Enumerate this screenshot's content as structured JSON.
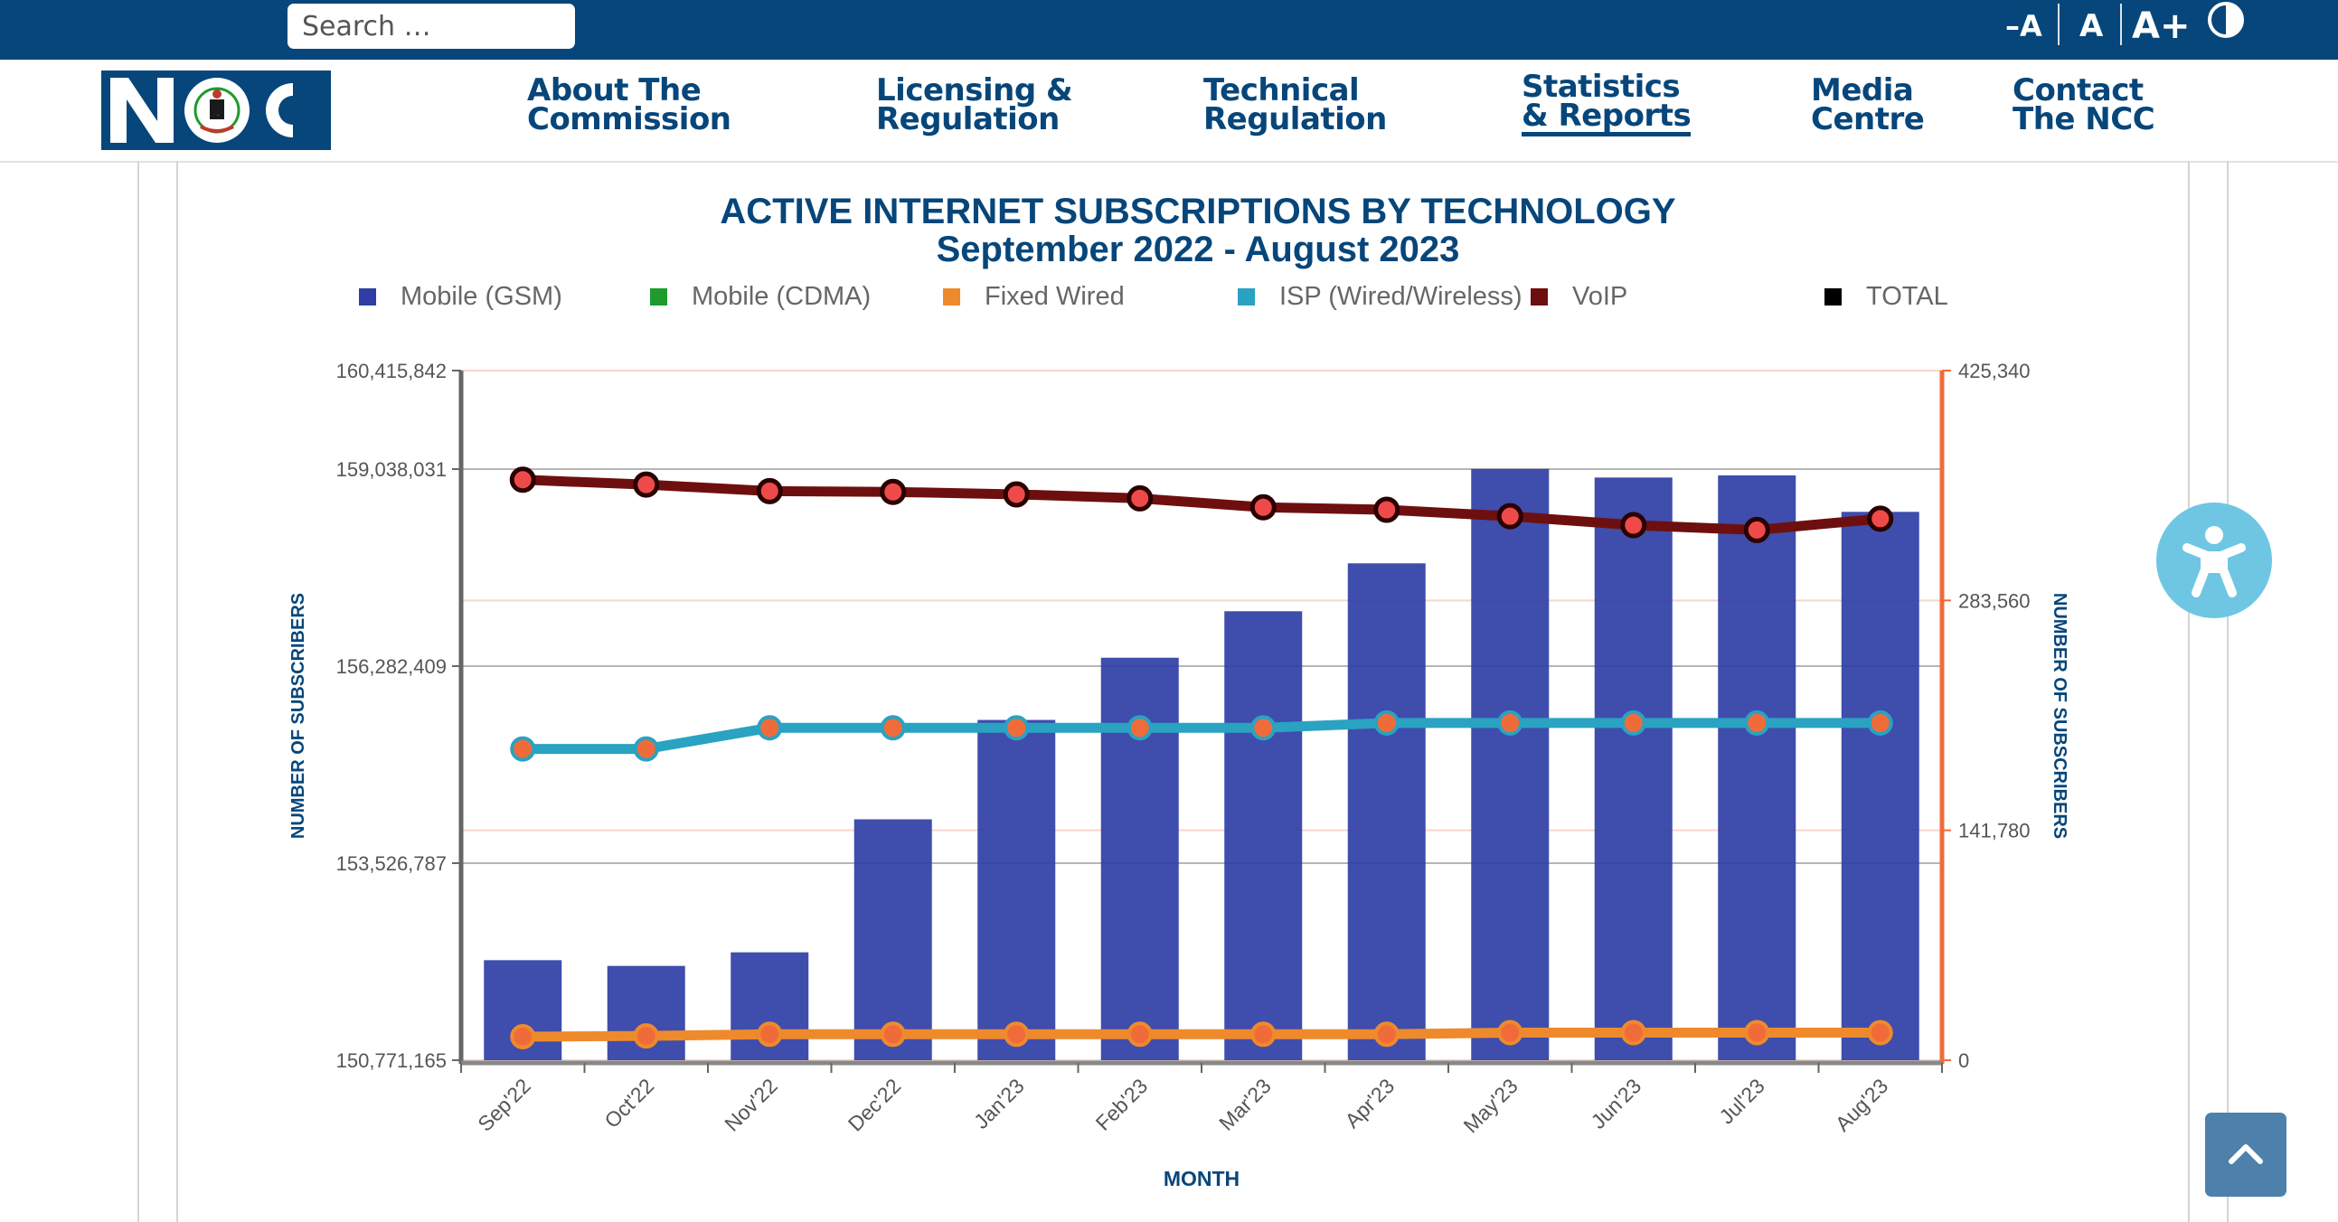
{
  "topbar": {
    "search_placeholder": "Search …",
    "font_decrease": "–A",
    "font_reset": "A",
    "font_increase": "A+"
  },
  "logo": {
    "text": "NCC"
  },
  "nav": {
    "about": [
      "About The",
      "Commission"
    ],
    "licensing": [
      "Licensing &",
      "Regulation"
    ],
    "technical": [
      "Technical",
      "Regulation"
    ],
    "statistics": [
      "Statistics",
      "& Reports"
    ],
    "media": [
      "Media",
      "Centre"
    ],
    "contact": [
      "Contact",
      "The NCC"
    ]
  },
  "colors": {
    "brand": "#06467a",
    "gsm": "#2f3ea5",
    "cdma": "#1f9a2c",
    "fixed": "#ef8a2c",
    "isp": "#2aa2c2",
    "voip": "#6e0f0f",
    "total": "#000000"
  },
  "chart_data": {
    "type": "bar",
    "title": "ACTIVE INTERNET SUBSCRIPTIONS BY TECHNOLOGY",
    "subtitle": "September 2022 - August 2023",
    "xlabel": "MONTH",
    "ylabel_left": "NUMBER OF SUBSCRIBERS",
    "ylabel_right": "NUMBER OF SUBSCRIBERS",
    "legend_position": "top",
    "legend": [
      "Mobile (GSM)",
      "Mobile (CDMA)",
      "Fixed Wired",
      "ISP (Wired/Wireless)",
      "VoIP",
      "TOTAL"
    ],
    "categories": [
      "Sep'22",
      "Oct'22",
      "Nov'22",
      "Dec'22",
      "Jan'23",
      "Feb'23",
      "Mar'23",
      "Apr'23",
      "May'23",
      "Jun'23",
      "Jul'23",
      "Aug'23"
    ],
    "y_left": {
      "range": [
        150771165,
        160415842
      ],
      "ticks": [
        "160,415,842",
        "159,038,031",
        "156,282,409",
        "153,526,787",
        "150,771,165"
      ],
      "tick_values": [
        160415842,
        159038031,
        156282409,
        153526787,
        150771165
      ]
    },
    "y_right": {
      "range": [
        0,
        425340
      ],
      "ticks": [
        "425,340",
        "283,560",
        "141,780",
        "0"
      ],
      "tick_values": [
        425340,
        283560,
        141780,
        0
      ]
    },
    "series": [
      {
        "name": "Mobile (GSM)",
        "type": "bar",
        "axis": "left",
        "values": [
          152170000,
          152090000,
          152280000,
          154140000,
          155530000,
          156400000,
          157050000,
          157720000,
          159040000,
          158920000,
          158950000,
          158440000
        ]
      },
      {
        "name": "Fixed Wired",
        "type": "line",
        "axis": "right",
        "values": [
          14500,
          15000,
          16000,
          16000,
          16000,
          16000,
          16000,
          16000,
          17000,
          17000,
          17000,
          17000
        ]
      },
      {
        "name": "ISP (Wired/Wireless)",
        "type": "line",
        "axis": "right",
        "values": [
          192000,
          192000,
          205000,
          205000,
          205000,
          205000,
          205000,
          208000,
          208000,
          208000,
          208000,
          208000
        ]
      },
      {
        "name": "VoIP",
        "type": "line",
        "axis": "right",
        "values": [
          358000,
          355000,
          351000,
          350500,
          349000,
          346500,
          341000,
          339500,
          335500,
          330000,
          327000,
          334000
        ]
      }
    ]
  },
  "widgets": {
    "accessibility_icon": "accessibility-icon",
    "scroll_top_icon": "chevron-up-icon"
  }
}
